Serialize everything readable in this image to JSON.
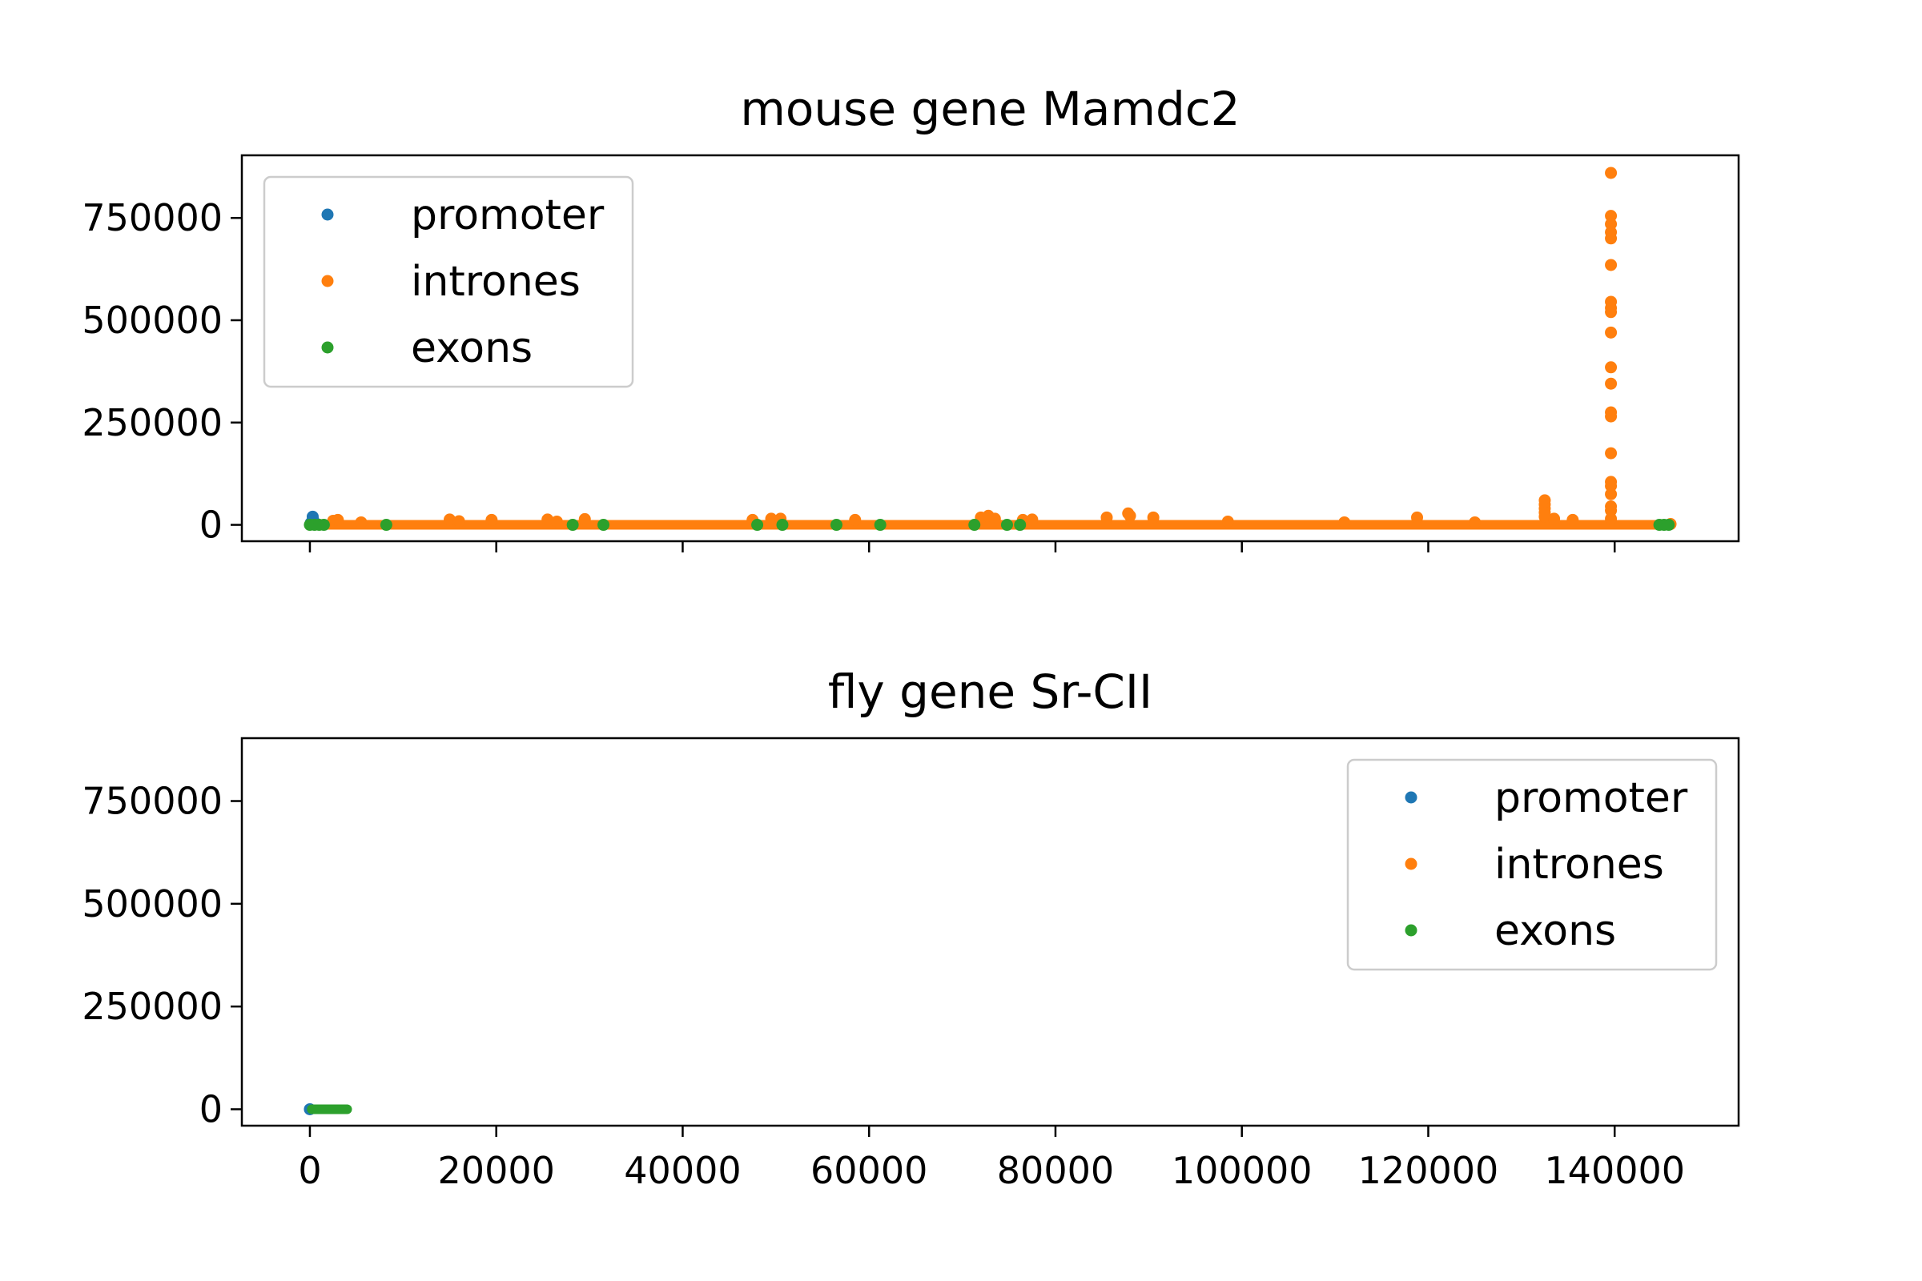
{
  "chart_data": [
    {
      "type": "scatter",
      "title": "mouse gene Mamdc2",
      "xlabel": "",
      "ylabel": "",
      "xlim": [
        -7300,
        153300
      ],
      "ylim": [
        -40000,
        903000
      ],
      "xticks": [
        0,
        20000,
        40000,
        60000,
        80000,
        100000,
        120000,
        140000
      ],
      "xtick_labels_shown": false,
      "yticks": [
        0,
        250000,
        500000,
        750000
      ],
      "legend": {
        "placement": "upper left",
        "entries": [
          "promoter",
          "intrones",
          "exons"
        ]
      },
      "series": [
        {
          "name": "promoter",
          "color": "#1f77b4",
          "baseline": {
            "x_start": 0,
            "x_end": 400,
            "y": 0
          },
          "points": [
            {
              "x": 100,
              "y": 5000
            },
            {
              "x": 300,
              "y": 20000
            },
            {
              "x": 400,
              "y": 10000
            }
          ]
        },
        {
          "name": "intrones",
          "color": "#ff7f0e",
          "baseline": {
            "x_start": 400,
            "x_end": 146000,
            "y": 0
          },
          "points": [
            {
              "x": 2500,
              "y": 10000
            },
            {
              "x": 3000,
              "y": 12000
            },
            {
              "x": 5500,
              "y": 6000
            },
            {
              "x": 15000,
              "y": 13000
            },
            {
              "x": 16000,
              "y": 9000
            },
            {
              "x": 19500,
              "y": 12000
            },
            {
              "x": 25500,
              "y": 13000
            },
            {
              "x": 26500,
              "y": 8000
            },
            {
              "x": 29500,
              "y": 14000
            },
            {
              "x": 47500,
              "y": 12000
            },
            {
              "x": 49500,
              "y": 15000
            },
            {
              "x": 50500,
              "y": 15000
            },
            {
              "x": 58500,
              "y": 12000
            },
            {
              "x": 72000,
              "y": 18000
            },
            {
              "x": 72800,
              "y": 22000
            },
            {
              "x": 73500,
              "y": 15000
            },
            {
              "x": 76500,
              "y": 12000
            },
            {
              "x": 77500,
              "y": 13000
            },
            {
              "x": 85500,
              "y": 18000
            },
            {
              "x": 87800,
              "y": 28000
            },
            {
              "x": 88000,
              "y": 22000
            },
            {
              "x": 90500,
              "y": 18000
            },
            {
              "x": 98500,
              "y": 8000
            },
            {
              "x": 111000,
              "y": 6000
            },
            {
              "x": 118800,
              "y": 18000
            },
            {
              "x": 125000,
              "y": 6000
            },
            {
              "x": 132500,
              "y": 60000
            },
            {
              "x": 132500,
              "y": 50000
            },
            {
              "x": 132500,
              "y": 40000
            },
            {
              "x": 132500,
              "y": 30000
            },
            {
              "x": 132500,
              "y": 20000
            },
            {
              "x": 133500,
              "y": 15000
            },
            {
              "x": 135500,
              "y": 12000
            },
            {
              "x": 139600,
              "y": 860000
            },
            {
              "x": 139600,
              "y": 755000
            },
            {
              "x": 139600,
              "y": 735000
            },
            {
              "x": 139600,
              "y": 715000
            },
            {
              "x": 139600,
              "y": 700000
            },
            {
              "x": 139600,
              "y": 635000
            },
            {
              "x": 139600,
              "y": 545000
            },
            {
              "x": 139600,
              "y": 530000
            },
            {
              "x": 139600,
              "y": 520000
            },
            {
              "x": 139600,
              "y": 470000
            },
            {
              "x": 139600,
              "y": 385000
            },
            {
              "x": 139600,
              "y": 345000
            },
            {
              "x": 139600,
              "y": 275000
            },
            {
              "x": 139600,
              "y": 265000
            },
            {
              "x": 139600,
              "y": 175000
            },
            {
              "x": 139600,
              "y": 105000
            },
            {
              "x": 139600,
              "y": 95000
            },
            {
              "x": 139600,
              "y": 75000
            },
            {
              "x": 139600,
              "y": 45000
            },
            {
              "x": 139600,
              "y": 35000
            },
            {
              "x": 139600,
              "y": 15000
            },
            {
              "x": 146000,
              "y": 2000
            }
          ]
        },
        {
          "name": "exons",
          "color": "#2ca02c",
          "baseline": null,
          "points": [
            {
              "x": 0,
              "y": 0
            },
            {
              "x": 500,
              "y": 0
            },
            {
              "x": 1000,
              "y": 0
            },
            {
              "x": 1500,
              "y": 0
            },
            {
              "x": 8200,
              "y": 0
            },
            {
              "x": 28200,
              "y": 0
            },
            {
              "x": 31500,
              "y": 0
            },
            {
              "x": 48000,
              "y": 0
            },
            {
              "x": 50700,
              "y": 0
            },
            {
              "x": 56500,
              "y": 0
            },
            {
              "x": 61200,
              "y": 0
            },
            {
              "x": 71300,
              "y": 0
            },
            {
              "x": 74800,
              "y": 0
            },
            {
              "x": 76200,
              "y": 0
            },
            {
              "x": 144800,
              "y": 0
            },
            {
              "x": 145300,
              "y": 0
            },
            {
              "x": 145800,
              "y": 0
            }
          ]
        }
      ]
    },
    {
      "type": "scatter",
      "title": "fly gene Sr-CII",
      "xlabel": "",
      "ylabel": "",
      "xlim": [
        -7300,
        153300
      ],
      "ylim": [
        -40000,
        903000
      ],
      "xticks": [
        0,
        20000,
        40000,
        60000,
        80000,
        100000,
        120000,
        140000
      ],
      "xtick_labels_shown": true,
      "yticks": [
        0,
        250000,
        500000,
        750000
      ],
      "legend": {
        "placement": "upper right",
        "entries": [
          "promoter",
          "intrones",
          "exons"
        ]
      },
      "series": [
        {
          "name": "promoter",
          "color": "#1f77b4",
          "baseline": {
            "x_start": 0,
            "x_end": 100,
            "y": 0
          },
          "points": [
            {
              "x": 0,
              "y": 0
            }
          ]
        },
        {
          "name": "intrones",
          "color": "#ff7f0e",
          "baseline": {
            "x_start": 300,
            "x_end": 3800,
            "y": 0
          },
          "points": []
        },
        {
          "name": "exons",
          "color": "#2ca02c",
          "baseline": {
            "x_start": 200,
            "x_end": 4000,
            "y": 0
          },
          "points": []
        }
      ]
    }
  ]
}
